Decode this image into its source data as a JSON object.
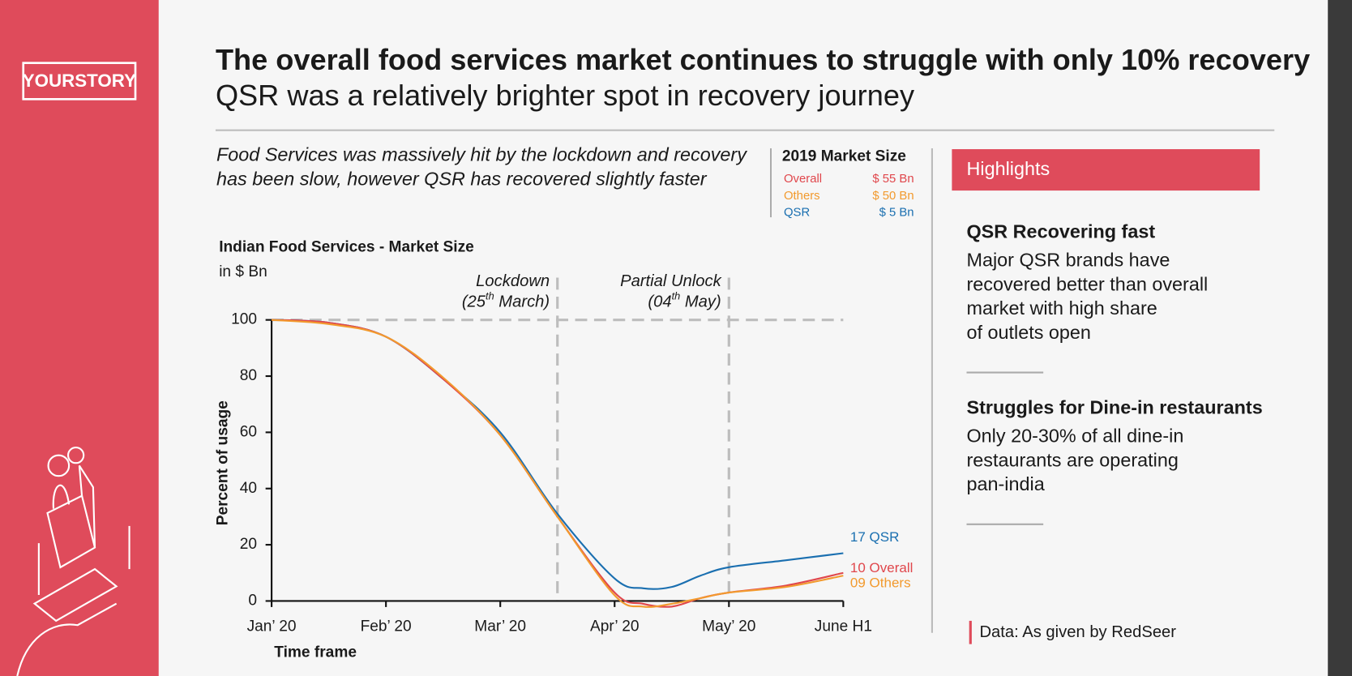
{
  "brand": "YOURSTORY",
  "header": {
    "title": "The overall food services market continues to struggle with only 10% recovery",
    "subtitle": "QSR was a relatively brighter spot in recovery journey"
  },
  "intro": [
    "Food Services was massively hit by the lockdown and recovery",
    "has been slow, however QSR has recovered slightly faster"
  ],
  "market_size": {
    "title": "2019 Market Size",
    "rows": [
      {
        "name": "Overall",
        "value": "$ 55 Bn",
        "color": "#e0474c"
      },
      {
        "name": "Others",
        "value": "$ 50 Bn",
        "color": "#f29a2e"
      },
      {
        "name": "QSR",
        "value": "$ 5 Bn",
        "color": "#1a6fb0"
      }
    ]
  },
  "highlights": {
    "title": "Highlights",
    "items": [
      {
        "heading": "QSR Recovering fast",
        "body": [
          "Major QSR brands have",
          "recovered better than overall",
          "market with high share",
          "of outlets open"
        ]
      },
      {
        "heading": "Struggles for Dine-in restaurants",
        "body": [
          "Only 20-30% of all dine-in",
          "restaurants are operating",
          "pan-india"
        ]
      }
    ]
  },
  "source": "Data: As given by RedSeer",
  "chart_data": {
    "type": "line",
    "title": "Indian Food Services - Market Size",
    "subtitle": "in $ Bn",
    "y_label": "Percent of usage",
    "x_label": "Time frame",
    "x": [
      0,
      0.5,
      1,
      1.5,
      2,
      2.5,
      3,
      3.25,
      3.5,
      3.75,
      4,
      4.5,
      5
    ],
    "xlim": [
      0,
      5
    ],
    "xticks": [
      {
        "value": 0,
        "label": "Jan’ 20"
      },
      {
        "value": 1,
        "label": "Feb’ 20"
      },
      {
        "value": 2,
        "label": "Mar’ 20"
      },
      {
        "value": 3,
        "label": "Apr’ 20"
      },
      {
        "value": 4,
        "label": "May’ 20"
      },
      {
        "value": 5,
        "label": "June H1"
      }
    ],
    "ylim": [
      0,
      100
    ],
    "yticks": [
      0,
      20,
      40,
      60,
      80,
      100
    ],
    "reference_y": 100,
    "events": [
      {
        "x": 2.5,
        "label": "Lockdown",
        "date": [
          "(25",
          "th",
          " March)"
        ]
      },
      {
        "x": 4,
        "label": "Partial Unlock",
        "date": [
          "(04",
          "th",
          " May)"
        ]
      }
    ],
    "series": [
      {
        "name": "QSR",
        "color": "#1a6fb0",
        "end_label": "17 QSR",
        "values": [
          100,
          99,
          94,
          79,
          60,
          31,
          8,
          4.5,
          5,
          9,
          12,
          14.5,
          17
        ]
      },
      {
        "name": "Overall",
        "color": "#e0474c",
        "end_label": "10 Overall",
        "values": [
          100,
          99,
          94,
          79,
          59,
          30,
          3,
          -1,
          -2,
          1,
          3,
          5.5,
          10
        ]
      },
      {
        "name": "Others",
        "color": "#f29a2e",
        "end_label": "09 Others",
        "values": [
          100,
          98.5,
          94,
          79.5,
          59,
          30,
          2,
          -2,
          -1,
          1,
          3,
          5,
          9
        ]
      }
    ]
  }
}
